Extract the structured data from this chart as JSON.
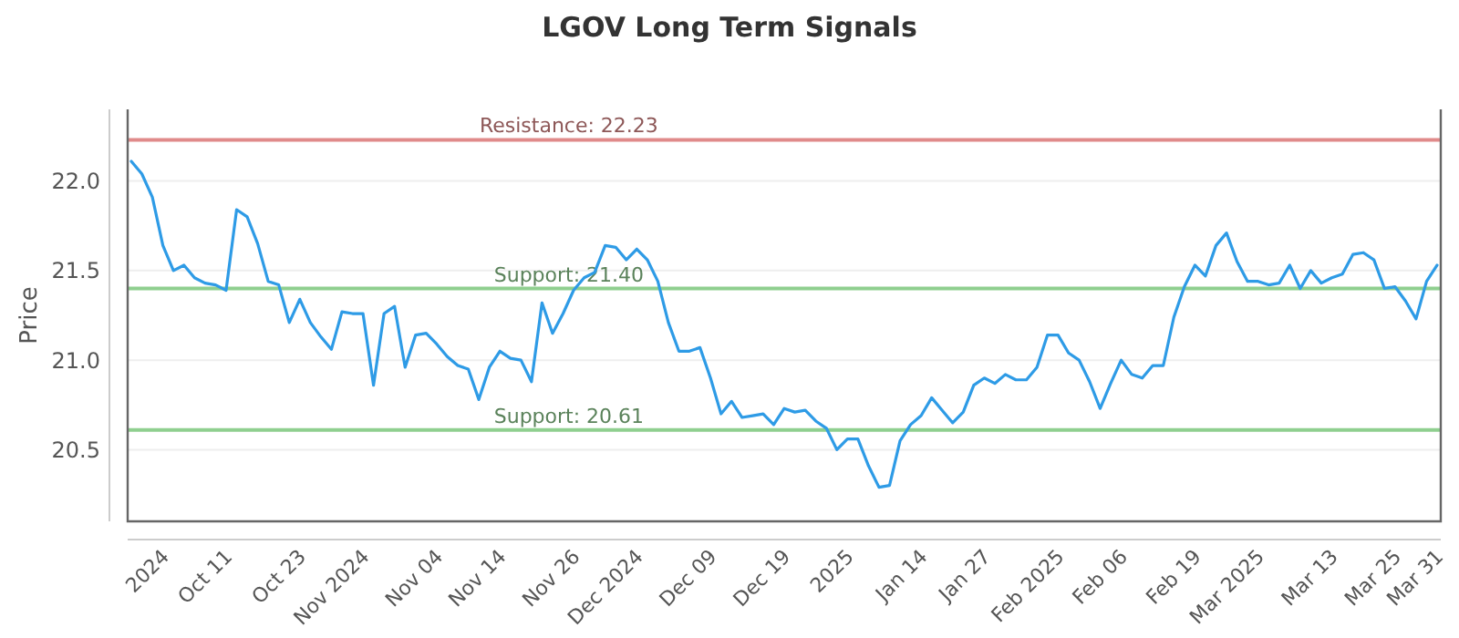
{
  "chart_data": {
    "type": "line",
    "title": "LGOV Long Term Signals",
    "ylabel": "Price",
    "categories": [
      null,
      null,
      null,
      "2024",
      null,
      null,
      null,
      null,
      null,
      "Oct 11",
      null,
      null,
      null,
      null,
      null,
      null,
      "Oct 23",
      null,
      null,
      null,
      null,
      null,
      "Nov 2024",
      null,
      null,
      null,
      null,
      null,
      null,
      "Nov 04",
      null,
      null,
      null,
      null,
      null,
      "Nov 14",
      null,
      null,
      null,
      null,
      null,
      null,
      "Nov 26",
      null,
      null,
      null,
      null,
      null,
      "Dec 2024",
      null,
      null,
      null,
      null,
      null,
      null,
      "Dec 09",
      null,
      null,
      null,
      null,
      null,
      null,
      "Dec 19",
      null,
      null,
      null,
      null,
      null,
      "2025",
      null,
      null,
      null,
      null,
      null,
      null,
      "Jan 14",
      null,
      null,
      null,
      null,
      null,
      "Jan 27",
      null,
      null,
      null,
      null,
      null,
      null,
      "Feb 2025",
      null,
      null,
      null,
      null,
      null,
      "Feb 06",
      null,
      null,
      null,
      null,
      null,
      null,
      "Feb 19",
      null,
      null,
      null,
      null,
      null,
      "Mar 2025",
      null,
      null,
      null,
      null,
      null,
      null,
      "Mar 13",
      null,
      null,
      null,
      null,
      null,
      "Mar 25",
      null,
      null,
      null,
      "Mar 31"
    ],
    "series": [
      {
        "color": "#2e9be6",
        "values": [
          22.11,
          22.04,
          21.91,
          21.64,
          21.5,
          21.53,
          21.46,
          21.43,
          21.42,
          21.39,
          21.84,
          21.8,
          21.65,
          21.44,
          21.42,
          21.21,
          21.34,
          21.21,
          21.13,
          21.06,
          21.27,
          21.26,
          21.26,
          20.86,
          21.26,
          21.3,
          20.96,
          21.14,
          21.15,
          21.09,
          21.02,
          20.97,
          20.95,
          20.78,
          20.96,
          21.05,
          21.01,
          21.0,
          20.88,
          21.32,
          21.15,
          21.26,
          21.39,
          21.46,
          21.49,
          21.64,
          21.63,
          21.56,
          21.62,
          21.56,
          21.44,
          21.21,
          21.05,
          21.05,
          21.07,
          20.9,
          20.7,
          20.77,
          20.68,
          20.69,
          20.7,
          20.64,
          20.73,
          20.71,
          20.72,
          20.66,
          20.62,
          20.5,
          20.56,
          20.56,
          20.41,
          20.29,
          20.3,
          20.55,
          20.64,
          20.69,
          20.79,
          20.72,
          20.65,
          20.71,
          20.86,
          20.9,
          20.87,
          20.92,
          20.89,
          20.89,
          20.96,
          21.14,
          21.14,
          21.04,
          21.0,
          20.88,
          20.73,
          20.87,
          21.0,
          20.92,
          20.9,
          20.97,
          20.97,
          21.24,
          21.41,
          21.53,
          21.47,
          21.64,
          21.71,
          21.55,
          21.44,
          21.44,
          21.42,
          21.43,
          21.53,
          21.4,
          21.5,
          21.43,
          21.46,
          21.48,
          21.59,
          21.6,
          21.56,
          21.4,
          21.41,
          21.33,
          21.23,
          21.44,
          21.53
        ]
      }
    ],
    "ylim": [
      20.1,
      22.4
    ],
    "yticks": [
      {
        "value": 20.5,
        "label": "20.5"
      },
      {
        "value": 21,
        "label": "21.0"
      },
      {
        "value": 21.5,
        "label": "21.5"
      },
      {
        "value": 22,
        "label": "22.0"
      }
    ],
    "grid": "y",
    "marker": "none",
    "line_style": "solid",
    "ref_lines": [
      {
        "axis": "y",
        "value": 22.23,
        "label": "Resistance: 22.23",
        "color": "#e08a8a"
      },
      {
        "axis": "y",
        "value": 21.4,
        "label": "Support: 21.40",
        "color": "#8fcf8f"
      },
      {
        "axis": "y",
        "value": 20.61,
        "label": "Support: 20.61",
        "color": "#8fcf8f"
      }
    ]
  }
}
